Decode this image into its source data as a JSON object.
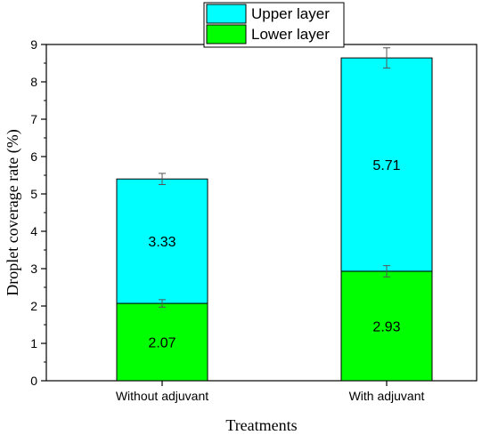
{
  "chart_data": {
    "type": "bar",
    "stacked": true,
    "categories": [
      "Without adjuvant",
      "With adjuvant"
    ],
    "series": [
      {
        "name": "Lower layer",
        "values": [
          2.07,
          2.93
        ],
        "errors": [
          0.1,
          0.15
        ],
        "color": "#00ff00"
      },
      {
        "name": "Upper layer",
        "values": [
          3.33,
          5.71
        ],
        "errors": [
          0.15,
          0.27
        ],
        "color": "#00ffff"
      }
    ],
    "data_labels": [
      [
        "2.07",
        "2.93"
      ],
      [
        "3.33",
        "5.71"
      ]
    ],
    "xlabel": "Treatments",
    "ylabel": "Droplet coverage rate (%)",
    "ylim": [
      0,
      9
    ],
    "yticks": [
      0,
      1,
      2,
      3,
      4,
      5,
      6,
      7,
      8,
      9
    ],
    "legend": {
      "position": "top-center",
      "order": [
        "Upper layer",
        "Lower layer"
      ]
    },
    "grid": false
  }
}
